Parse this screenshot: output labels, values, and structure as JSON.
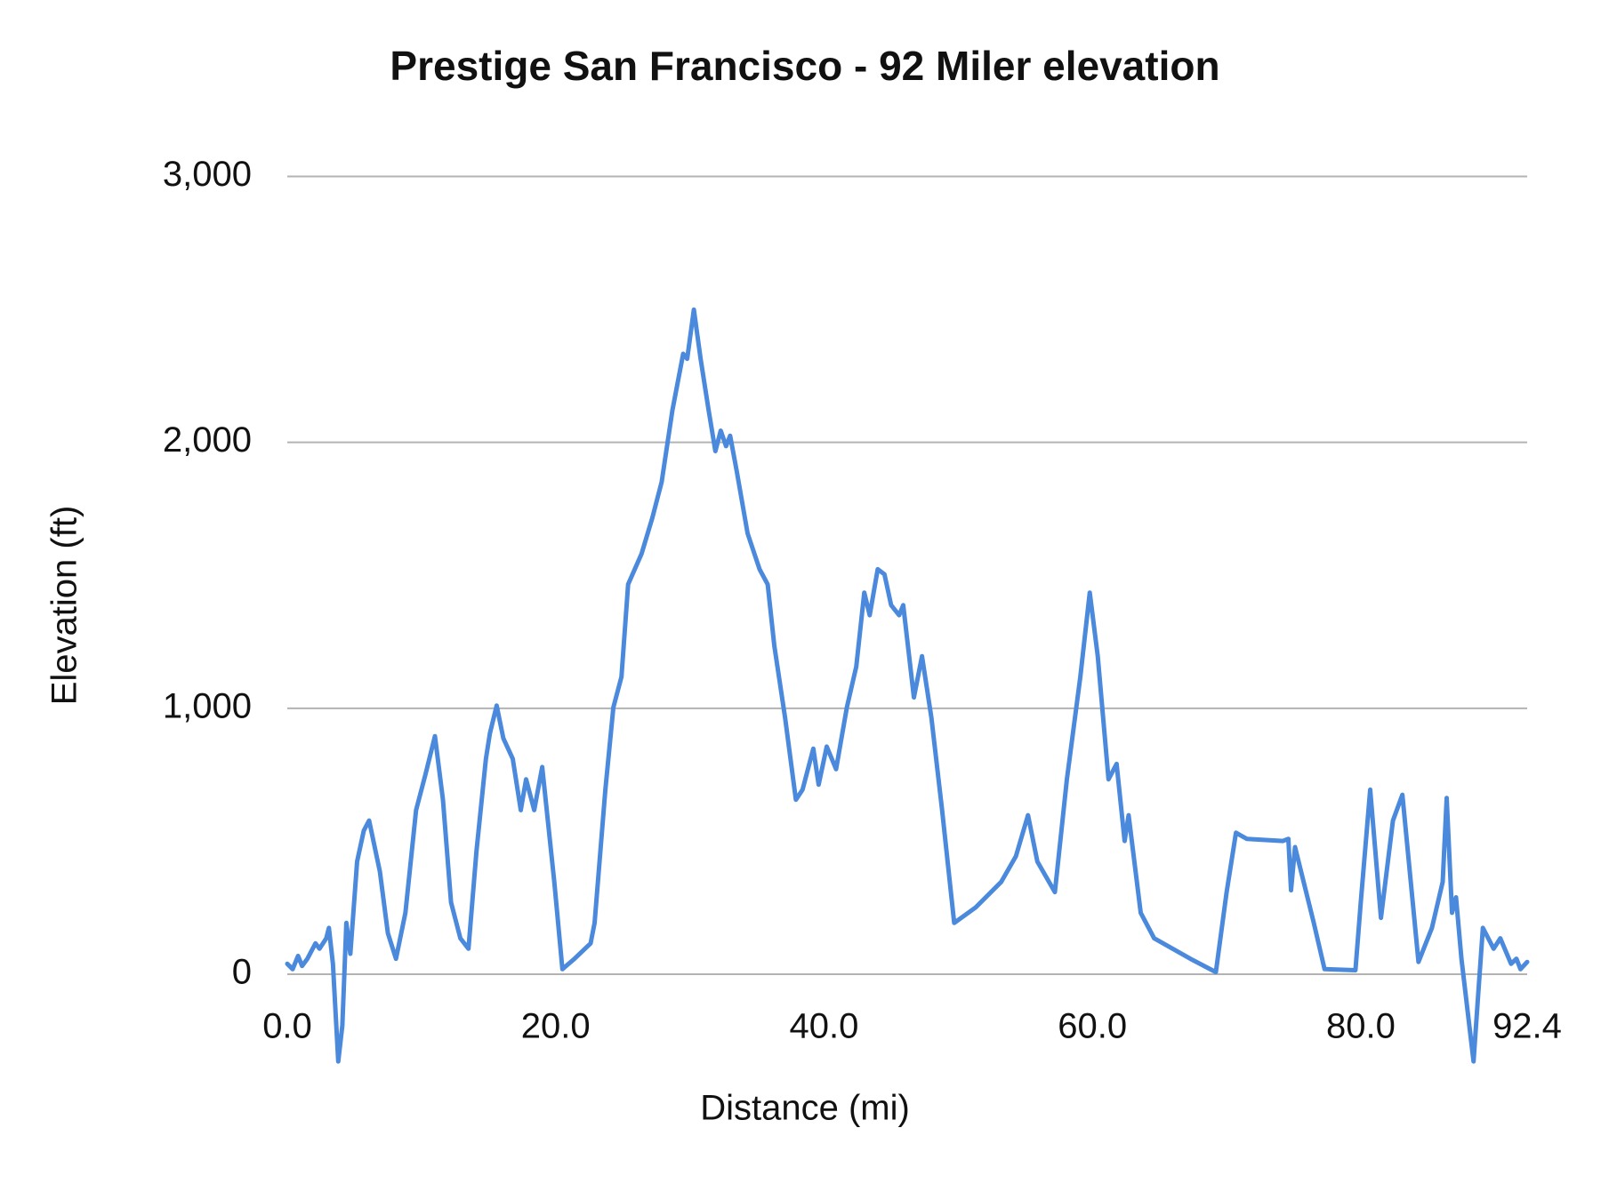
{
  "chart_data": {
    "type": "line",
    "title": "Prestige San Francisco - 92 Miler elevation",
    "x_label": "Distance (mi)",
    "y_label": "Elevation (ft)",
    "color": "#4a89dc",
    "grid": true,
    "xlim": [
      0,
      92.4
    ],
    "ylim": [
      0,
      3000
    ],
    "xticks": [
      {
        "value": 0,
        "label": "0.0"
      },
      {
        "value": 20,
        "label": "20.0"
      },
      {
        "value": 40,
        "label": "40.0"
      },
      {
        "value": 60,
        "label": "60.0"
      },
      {
        "value": 80,
        "label": "80.0"
      },
      92.4
    ],
    "yticks": [
      0,
      {
        "value": 1000,
        "label": "1,000"
      },
      {
        "value": 2000,
        "label": "2,000"
      },
      {
        "value": 3000,
        "label": "3,000"
      }
    ],
    "x": [
      0,
      0.4,
      0.8,
      1.1,
      1.5,
      2.1,
      2.4,
      2.9,
      3.1,
      3.4,
      3.8,
      4.1,
      4.4,
      4.7,
      5.2,
      5.7,
      6.1,
      6.9,
      7.5,
      8.1,
      8.8,
      9.6,
      10.3,
      11.0,
      11.6,
      12.2,
      12.9,
      13.5,
      14.1,
      14.8,
      15.1,
      15.6,
      16.1,
      16.8,
      17.4,
      17.8,
      18.4,
      19.0,
      19.9,
      20.5,
      21.4,
      22.6,
      22.9,
      23.7,
      24.3,
      24.9,
      25.4,
      26.4,
      27.2,
      27.9,
      28.7,
      29.5,
      29.8,
      30.3,
      30.8,
      31.4,
      31.9,
      32.3,
      32.7,
      33.0,
      33.5,
      34.3,
      35.2,
      35.8,
      36.3,
      37.1,
      37.9,
      38.4,
      39.2,
      39.6,
      40.2,
      40.9,
      41.7,
      42.4,
      43.0,
      43.4,
      44.0,
      44.5,
      45.0,
      45.6,
      45.9,
      46.7,
      47.3,
      48.0,
      48.8,
      49.7,
      51.3,
      53.2,
      54.3,
      55.2,
      55.9,
      57.2,
      58.1,
      59.1,
      59.8,
      60.4,
      61.2,
      61.8,
      62.4,
      62.7,
      63.6,
      64.6,
      67.3,
      69.2,
      70.0,
      70.7,
      71.5,
      74.2,
      74.6,
      74.8,
      75.1,
      76.5,
      77.3,
      79.6,
      80.0,
      80.7,
      81.5,
      82.4,
      83.1,
      84.3,
      85.3,
      86.1,
      86.4,
      86.8,
      87.1,
      87.5,
      88.4,
      88.8,
      89.1,
      89.9,
      90.4,
      91.2,
      91.6,
      91.9,
      92.4
    ],
    "values": [
      39,
      19,
      69,
      31,
      58,
      116,
      96,
      135,
      174,
      39,
      -328,
      -193,
      193,
      77,
      424,
      540,
      578,
      386,
      154,
      58,
      231,
      617,
      752,
      895,
      656,
      270,
      135,
      96,
      463,
      810,
      906,
      1010,
      887,
      810,
      617,
      733,
      617,
      779,
      347,
      19,
      58,
      116,
      193,
      694,
      1003,
      1118,
      1466,
      1581,
      1716,
      1851,
      2121,
      2333,
      2314,
      2499,
      2314,
      2121,
      1967,
      2044,
      1986,
      2025,
      1890,
      1658,
      1523,
      1466,
      1234,
      964,
      656,
      694,
      848,
      713,
      856,
      771,
      1003,
      1157,
      1435,
      1350,
      1523,
      1504,
      1388,
      1350,
      1388,
      1041,
      1196,
      964,
      617,
      193,
      251,
      347,
      444,
      598,
      424,
      309,
      733,
      1118,
      1435,
      1196,
      733,
      791,
      501,
      598,
      231,
      135,
      58,
      8,
      309,
      532,
      509,
      501,
      509,
      316,
      478,
      193,
      19,
      15,
      270,
      694,
      212,
      578,
      675,
      46,
      174,
      347,
      663,
      231,
      289,
      58,
      -328,
      -39,
      174,
      96,
      135,
      39,
      58,
      19,
      46
    ]
  }
}
